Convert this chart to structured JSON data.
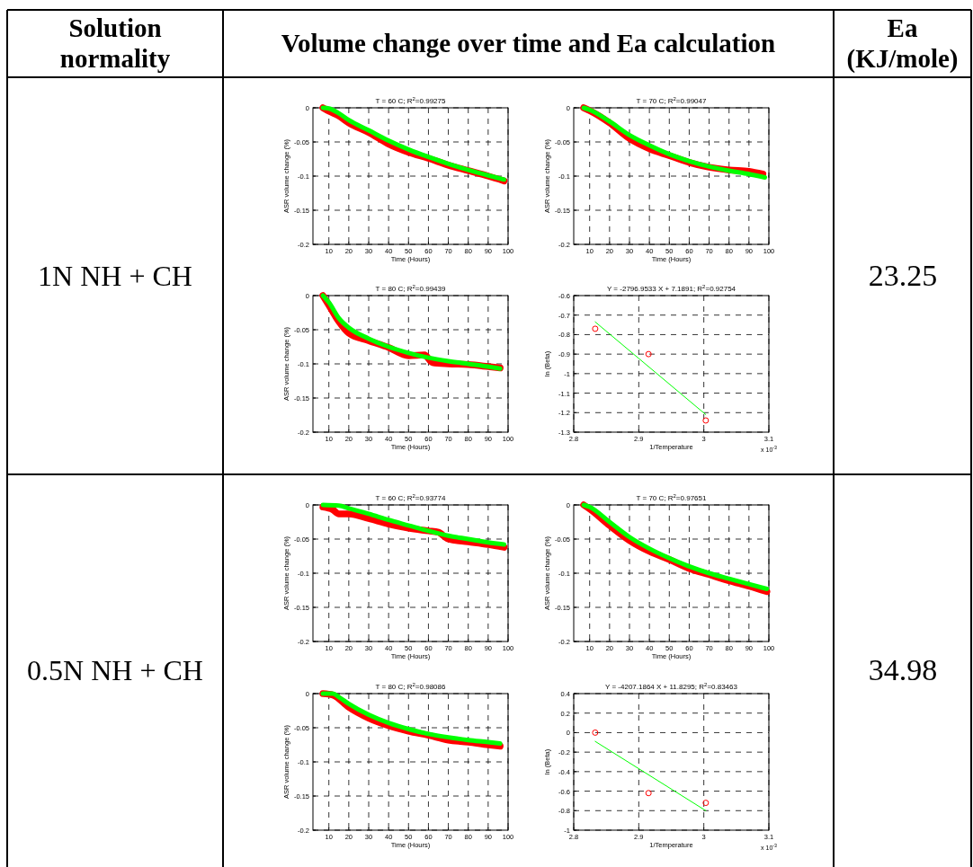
{
  "chart_data": [
    {
      "type": "other",
      "annotations": [
        "Solution normality",
        "Volume change over time and Ea calculation",
        "Ea (KJ/mole)",
        "1N NH + CH",
        "23.25",
        "0.5N NH + CH",
        "34.98"
      ]
    },
    {
      "type": "line",
      "title": "T = 60 C; R$^{2}$=0.99275",
      "xlabel": "Time (Hours)",
      "ylabel": "ASR volume change (%)",
      "xlim": [
        2,
        100
      ],
      "xticks": [
        10,
        20,
        30,
        40,
        50,
        60,
        70,
        80,
        90,
        100
      ],
      "ylim": [
        -0.2,
        0
      ],
      "yticks": [
        -0.2,
        -0.15,
        -0.1,
        -0.05,
        0
      ],
      "grid": true,
      "line_style": "solid",
      "series": [
        {
          "color": "#ff0000",
          "x": [
            7,
            10,
            15,
            20,
            30,
            40,
            50,
            60,
            70,
            80,
            90,
            98
          ],
          "values": [
            0,
            -0.005,
            -0.012,
            -0.022,
            -0.036,
            -0.053,
            -0.065,
            -0.074,
            -0.084,
            -0.092,
            -0.1,
            -0.107
          ]
        },
        {
          "color": "#00ff00",
          "x": [
            7,
            10,
            15,
            20,
            30,
            40,
            50,
            60,
            70,
            80,
            90,
            98
          ],
          "values": [
            0,
            -0.001,
            -0.008,
            -0.018,
            -0.033,
            -0.048,
            -0.061,
            -0.072,
            -0.082,
            -0.091,
            -0.099,
            -0.105
          ]
        }
      ]
    },
    {
      "type": "line",
      "title": "T = 70 C; R$^{2}$=0.99047",
      "xlabel": "Time (Hours)",
      "ylabel": "ASR volume change (%)",
      "xlim": [
        2,
        100
      ],
      "xticks": [
        10,
        20,
        30,
        40,
        50,
        60,
        70,
        80,
        90,
        100
      ],
      "ylim": [
        -0.2,
        0
      ],
      "yticks": [
        -0.2,
        -0.15,
        -0.1,
        -0.05,
        0
      ],
      "grid": true,
      "line_style": "solid",
      "series": [
        {
          "color": "#ff0000",
          "x": [
            7,
            10,
            20,
            30,
            40,
            50,
            60,
            70,
            80,
            90,
            97
          ],
          "values": [
            0,
            -0.004,
            -0.022,
            -0.045,
            -0.06,
            -0.07,
            -0.08,
            -0.087,
            -0.091,
            -0.093,
            -0.097
          ]
        },
        {
          "color": "#00ff00",
          "x": [
            7,
            10,
            20,
            30,
            40,
            50,
            60,
            70,
            80,
            90,
            98
          ],
          "values": [
            0,
            -0.003,
            -0.02,
            -0.04,
            -0.055,
            -0.068,
            -0.078,
            -0.086,
            -0.092,
            -0.097,
            -0.102
          ]
        }
      ]
    },
    {
      "type": "line",
      "title": "T = 80 C; R$^{2}$=0.99439",
      "xlabel": "Time (Hours)",
      "ylabel": "ASR volume change (%)",
      "xlim": [
        2,
        100
      ],
      "xticks": [
        10,
        20,
        30,
        40,
        50,
        60,
        70,
        80,
        90,
        100
      ],
      "ylim": [
        -0.2,
        0
      ],
      "yticks": [
        -0.2,
        -0.15,
        -0.1,
        -0.05,
        0
      ],
      "grid": true,
      "line_style": "solid",
      "series": [
        {
          "color": "#ff0000",
          "x": [
            7,
            10,
            15,
            20,
            30,
            40,
            50,
            58,
            62,
            70,
            80,
            90,
            96
          ],
          "values": [
            0,
            -0.014,
            -0.038,
            -0.055,
            -0.066,
            -0.076,
            -0.088,
            -0.087,
            -0.098,
            -0.1,
            -0.101,
            -0.104,
            -0.106
          ]
        },
        {
          "color": "#00ff00",
          "x": [
            7,
            10,
            15,
            20,
            30,
            40,
            50,
            60,
            70,
            80,
            90,
            96
          ],
          "values": [
            0,
            -0.01,
            -0.033,
            -0.047,
            -0.063,
            -0.075,
            -0.084,
            -0.091,
            -0.096,
            -0.1,
            -0.104,
            -0.107
          ]
        }
      ]
    },
    {
      "type": "scatter",
      "title": "Y = -2796.9533 X + 7.1891; R$^{2}$=0.92754",
      "xlabel": "1/Temperature",
      "ylabel": "ln (Beta)",
      "annotations": [
        "x 10$^{-3}$"
      ],
      "xlim": [
        2.8,
        3.1
      ],
      "xticks": [
        2.8,
        2.9,
        3,
        3.1
      ],
      "ylim": [
        -1.3,
        -0.6
      ],
      "yticks": [
        -1.3,
        -1.2,
        -1.1,
        -1,
        -0.9,
        -0.8,
        -0.7,
        -0.6
      ],
      "grid": true,
      "series": [
        {
          "type": "scatter",
          "marker": "circle",
          "color": "#ff0000",
          "x": [
            2.833,
            2.915,
            3.003
          ],
          "values": [
            -0.77,
            -0.9,
            -1.24
          ]
        },
        {
          "type": "line",
          "color": "#00ff00",
          "x": [
            2.833,
            3.003
          ],
          "values": [
            -0.735,
            -1.21
          ]
        }
      ]
    },
    {
      "type": "line",
      "title": "T = 60 C; R$^{2}$=0.93774",
      "xlabel": "Time (Hours)",
      "ylabel": "ASR volume change (%)",
      "xlim": [
        2,
        100
      ],
      "xticks": [
        10,
        20,
        30,
        40,
        50,
        60,
        70,
        80,
        90,
        100
      ],
      "ylim": [
        -0.2,
        0
      ],
      "yticks": [
        -0.2,
        -0.15,
        -0.1,
        -0.05,
        0
      ],
      "grid": true,
      "line_style": "solid",
      "series": [
        {
          "color": "#ff0000",
          "x": [
            7,
            12,
            15,
            20,
            30,
            40,
            50,
            60,
            65,
            70,
            80,
            90,
            98
          ],
          "values": [
            -0.003,
            -0.007,
            -0.013,
            -0.013,
            -0.02,
            -0.028,
            -0.034,
            -0.038,
            -0.04,
            -0.05,
            -0.054,
            -0.058,
            -0.062
          ]
        },
        {
          "color": "#00ff00",
          "x": [
            7,
            15,
            20,
            30,
            40,
            50,
            60,
            70,
            80,
            90,
            98
          ],
          "values": [
            0,
            -0.001,
            -0.005,
            -0.013,
            -0.022,
            -0.03,
            -0.038,
            -0.045,
            -0.05,
            -0.055,
            -0.058
          ]
        }
      ]
    },
    {
      "type": "line",
      "title": "T = 70 C; R$^{2}$=0.97651",
      "xlabel": "Time (Hours)",
      "ylabel": "ASR volume change (%)",
      "xlim": [
        2,
        100
      ],
      "xticks": [
        10,
        20,
        30,
        40,
        50,
        60,
        70,
        80,
        90,
        100
      ],
      "ylim": [
        -0.2,
        0
      ],
      "yticks": [
        -0.2,
        -0.15,
        -0.1,
        -0.05,
        0
      ],
      "grid": true,
      "line_style": "solid",
      "series": [
        {
          "color": "#ff0000",
          "x": [
            7,
            10,
            20,
            30,
            40,
            50,
            60,
            70,
            80,
            90,
            99
          ],
          "values": [
            0,
            -0.006,
            -0.03,
            -0.052,
            -0.068,
            -0.08,
            -0.093,
            -0.102,
            -0.111,
            -0.119,
            -0.127
          ]
        },
        {
          "color": "#00ff00",
          "x": [
            7,
            10,
            20,
            30,
            40,
            50,
            60,
            70,
            80,
            90,
            99
          ],
          "values": [
            0,
            -0.003,
            -0.025,
            -0.047,
            -0.064,
            -0.078,
            -0.09,
            -0.1,
            -0.108,
            -0.116,
            -0.123
          ]
        }
      ]
    },
    {
      "type": "line",
      "title": "T = 80 C; R$^{2}$=0.98086",
      "xlabel": "Time (Hours)",
      "ylabel": "ASR volume change (%)",
      "xlim": [
        2,
        100
      ],
      "xticks": [
        10,
        20,
        30,
        40,
        50,
        60,
        70,
        80,
        90,
        100
      ],
      "ylim": [
        -0.2,
        0
      ],
      "yticks": [
        -0.2,
        -0.15,
        -0.1,
        -0.05,
        0
      ],
      "grid": true,
      "line_style": "solid",
      "series": [
        {
          "color": "#ff0000",
          "x": [
            7,
            12,
            20,
            30,
            40,
            50,
            60,
            70,
            80,
            90,
            96
          ],
          "values": [
            0,
            -0.002,
            -0.02,
            -0.036,
            -0.047,
            -0.055,
            -0.061,
            -0.068,
            -0.071,
            -0.075,
            -0.077
          ]
        },
        {
          "color": "#00ff00",
          "x": [
            7,
            12,
            15,
            20,
            30,
            40,
            50,
            60,
            70,
            80,
            90,
            96
          ],
          "values": [
            0,
            0,
            -0.005,
            -0.015,
            -0.031,
            -0.043,
            -0.052,
            -0.059,
            -0.064,
            -0.068,
            -0.071,
            -0.073
          ]
        }
      ]
    },
    {
      "type": "scatter",
      "title": "Y = -4207.1864 X + 11.8295; R$^{2}$=0.83463",
      "xlabel": "1/Temperature",
      "ylabel": "ln (Beta)",
      "annotations": [
        "x 10$^{-3}$"
      ],
      "xlim": [
        2.8,
        3.1
      ],
      "xticks": [
        2.8,
        2.9,
        3,
        3.1
      ],
      "ylim": [
        -1,
        0.4
      ],
      "yticks": [
        -1,
        -0.8,
        -0.6,
        -0.4,
        -0.2,
        0,
        0.2,
        0.4
      ],
      "grid": true,
      "series": [
        {
          "type": "scatter",
          "marker": "circle",
          "color": "#ff0000",
          "x": [
            2.833,
            2.915,
            3.003
          ],
          "values": [
            0,
            -0.62,
            -0.72
          ]
        },
        {
          "type": "line",
          "color": "#00ff00",
          "x": [
            2.833,
            3.003
          ],
          "values": [
            -0.09,
            -0.8
          ]
        }
      ]
    }
  ]
}
